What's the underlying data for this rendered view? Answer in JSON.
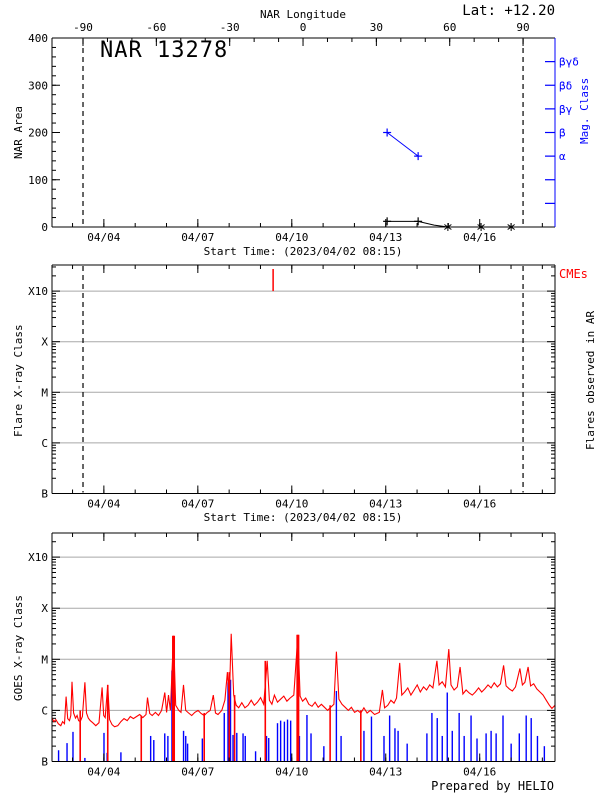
{
  "colors": {
    "accent_blue": "#0000ff",
    "accent_red": "#ff0000",
    "grid_gray": "#a8a8a8",
    "axis_black": "#000000"
  },
  "chart_data": [
    {
      "id": "nar_area_panel",
      "type": "line",
      "title": "NAR 13278",
      "lat_label": "Lat: +12.20",
      "ylabel": "NAR Area",
      "ylim": [
        0,
        400
      ],
      "yticks": [
        0,
        100,
        200,
        300,
        400
      ],
      "y_minor_step": 20,
      "xlabel": "Start Time: (2023/04/02 08:15)",
      "x_tick_labels": [
        "04/04",
        "04/07",
        "04/10",
        "04/13",
        "04/16"
      ],
      "x_tick_days": [
        1.656,
        4.656,
        7.656,
        10.656,
        13.656
      ],
      "x_span_days": 16.06,
      "x_minor_first_day": 0.656,
      "x_minor_step_days": 1,
      "top_axis": {
        "label": "NAR Longitude",
        "ticks": [
          -90,
          -60,
          -30,
          0,
          30,
          60,
          90
        ],
        "minor_step": 10,
        "deg_min": -90,
        "deg_max": 90,
        "deg_min_day": 0.99,
        "deg_max_day": 15.04
      },
      "right_axis": {
        "label": "Mag. Class",
        "ticks": [
          {
            "value": 350,
            "label": "βγδ"
          },
          {
            "value": 300,
            "label": "βδ"
          },
          {
            "value": 250,
            "label": "βγ"
          },
          {
            "value": 200,
            "label": "β"
          },
          {
            "value": 150,
            "label": "α"
          },
          {
            "value": 100,
            "label": ""
          },
          {
            "value": 50,
            "label": ""
          }
        ]
      },
      "disk_passage_vlines_days": [
        0.99,
        15.04
      ],
      "area_series": {
        "points": [
          {
            "day": 10.7,
            "area": 12,
            "marker": "plus"
          },
          {
            "day": 11.69,
            "area": 12,
            "marker": "plus"
          },
          {
            "day": 12.2,
            "area": 4,
            "marker": "none"
          },
          {
            "day": 12.64,
            "area": 0,
            "marker": "star"
          },
          {
            "day": 13.7,
            "area": 0,
            "marker": "star"
          },
          {
            "day": 14.66,
            "area": 0,
            "marker": "star"
          }
        ]
      },
      "mag_series": {
        "points": [
          {
            "day": 10.7,
            "mag_class": "β",
            "value": 200
          },
          {
            "day": 11.69,
            "mag_class": "α",
            "value": 150
          }
        ]
      }
    },
    {
      "id": "flares_panel",
      "type": "event-timeline",
      "ylabel": "Flare X-ray Class",
      "right_label": "Flares observed in AR",
      "cme_label": "CMEs",
      "class_ticks": [
        "B",
        "C",
        "M",
        "X",
        "X10"
      ],
      "xlabel": "Start Time: (2023/04/02 08:15)",
      "x_tick_labels": [
        "04/04",
        "04/07",
        "04/10",
        "04/13",
        "04/16"
      ],
      "x_tick_days": [
        1.656,
        4.656,
        7.656,
        10.656,
        13.656
      ],
      "x_span_days": 16.06,
      "x_minor_first_day": 0.656,
      "x_minor_step_days": 1,
      "disk_passage_vlines_days": [
        0.99,
        15.04
      ],
      "flare_events": [],
      "cme_event_days": [
        7.06
      ]
    },
    {
      "id": "goes_panel",
      "type": "line",
      "ylabel": "GOES X-ray Class",
      "class_ticks": [
        "B",
        "C",
        "M",
        "X",
        "X10"
      ],
      "x_tick_labels": [
        "04/04",
        "04/07",
        "04/10",
        "04/13",
        "04/16"
      ],
      "x_tick_days": [
        1.656,
        4.656,
        7.656,
        10.656,
        13.656
      ],
      "x_span_days": 16.06,
      "x_minor_first_day": 0.656,
      "x_minor_step_days": 1,
      "credit": "Prepared by HELIO",
      "flux_curve_log_units_above_B": [
        [
          0,
          0.85
        ],
        [
          0.06,
          0.78
        ],
        [
          0.12,
          0.82
        ],
        [
          0.2,
          0.74
        ],
        [
          0.28,
          0.7
        ],
        [
          0.34,
          0.78
        ],
        [
          0.4,
          0.74
        ],
        [
          0.45,
          1.27
        ],
        [
          0.5,
          0.84
        ],
        [
          0.56,
          0.8
        ],
        [
          0.6,
          0.9
        ],
        [
          0.64,
          1.56
        ],
        [
          0.69,
          0.95
        ],
        [
          0.75,
          0.85
        ],
        [
          0.8,
          0.9
        ],
        [
          0.85,
          0.8
        ],
        [
          0.9,
          0.78
        ],
        [
          0.97,
          0.88
        ],
        [
          1.05,
          1.55
        ],
        [
          1.1,
          0.95
        ],
        [
          1.16,
          0.85
        ],
        [
          1.22,
          0.8
        ],
        [
          1.3,
          0.76
        ],
        [
          1.4,
          0.7
        ],
        [
          1.5,
          0.76
        ],
        [
          1.6,
          1.45
        ],
        [
          1.65,
          0.9
        ],
        [
          1.7,
          0.86
        ],
        [
          1.78,
          1.5
        ],
        [
          1.84,
          0.82
        ],
        [
          1.92,
          0.72
        ],
        [
          2.0,
          0.68
        ],
        [
          2.1,
          0.7
        ],
        [
          2.2,
          0.78
        ],
        [
          2.3,
          0.84
        ],
        [
          2.4,
          0.8
        ],
        [
          2.5,
          0.88
        ],
        [
          2.6,
          0.84
        ],
        [
          2.7,
          0.88
        ],
        [
          2.8,
          0.92
        ],
        [
          2.9,
          0.86
        ],
        [
          3.0,
          0.92
        ],
        [
          3.05,
          1.25
        ],
        [
          3.12,
          0.94
        ],
        [
          3.2,
          0.9
        ],
        [
          3.3,
          0.96
        ],
        [
          3.4,
          0.9
        ],
        [
          3.5,
          1.0
        ],
        [
          3.6,
          1.35
        ],
        [
          3.66,
          0.96
        ],
        [
          3.72,
          1.3
        ],
        [
          3.78,
          1.0
        ],
        [
          3.88,
          2.46
        ],
        [
          3.95,
          1.1
        ],
        [
          4.05,
          1.0
        ],
        [
          4.12,
          0.96
        ],
        [
          4.2,
          1.5
        ],
        [
          4.27,
          1.0
        ],
        [
          4.36,
          0.95
        ],
        [
          4.46,
          0.9
        ],
        [
          4.56,
          0.96
        ],
        [
          4.66,
          1.0
        ],
        [
          4.76,
          0.94
        ],
        [
          4.86,
          0.9
        ],
        [
          4.96,
          0.96
        ],
        [
          5.05,
          1.0
        ],
        [
          5.15,
          1.3
        ],
        [
          5.22,
          0.95
        ],
        [
          5.3,
          0.92
        ],
        [
          5.42,
          1.0
        ],
        [
          5.52,
          1.2
        ],
        [
          5.6,
          1.75
        ],
        [
          5.66,
          1.2
        ],
        [
          5.72,
          2.5
        ],
        [
          5.8,
          1.3
        ],
        [
          5.88,
          1.1
        ],
        [
          5.96,
          1.05
        ],
        [
          6.06,
          1.15
        ],
        [
          6.16,
          1.05
        ],
        [
          6.26,
          1.1
        ],
        [
          6.36,
          1.2
        ],
        [
          6.46,
          1.1
        ],
        [
          6.56,
          1.16
        ],
        [
          6.66,
          1.25
        ],
        [
          6.76,
          1.12
        ],
        [
          6.87,
          1.97
        ],
        [
          6.94,
          1.2
        ],
        [
          7.02,
          1.12
        ],
        [
          7.1,
          1.3
        ],
        [
          7.2,
          1.16
        ],
        [
          7.3,
          1.22
        ],
        [
          7.4,
          1.28
        ],
        [
          7.5,
          1.18
        ],
        [
          7.6,
          1.24
        ],
        [
          7.72,
          1.3
        ],
        [
          7.85,
          2.48
        ],
        [
          7.92,
          1.28
        ],
        [
          8.0,
          1.18
        ],
        [
          8.1,
          1.24
        ],
        [
          8.2,
          1.12
        ],
        [
          8.3,
          1.08
        ],
        [
          8.4,
          1.16
        ],
        [
          8.5,
          1.06
        ],
        [
          8.6,
          1.12
        ],
        [
          8.7,
          1.06
        ],
        [
          8.8,
          1.0
        ],
        [
          8.9,
          1.06
        ],
        [
          9.0,
          1.12
        ],
        [
          9.08,
          2.15
        ],
        [
          9.16,
          1.22
        ],
        [
          9.26,
          1.12
        ],
        [
          9.36,
          1.06
        ],
        [
          9.46,
          1.0
        ],
        [
          9.56,
          1.06
        ],
        [
          9.66,
          0.96
        ],
        [
          9.76,
          1.0
        ],
        [
          9.86,
          0.95
        ],
        [
          9.96,
          1.05
        ],
        [
          10.06,
          0.95
        ],
        [
          10.16,
          1.0
        ],
        [
          10.3,
          0.92
        ],
        [
          10.45,
          0.96
        ],
        [
          10.55,
          1.4
        ],
        [
          10.62,
          1.05
        ],
        [
          10.72,
          1.1
        ],
        [
          10.82,
          1.2
        ],
        [
          10.92,
          1.14
        ],
        [
          11.0,
          1.24
        ],
        [
          11.1,
          1.93
        ],
        [
          11.17,
          1.3
        ],
        [
          11.26,
          1.36
        ],
        [
          11.36,
          1.44
        ],
        [
          11.46,
          1.3
        ],
        [
          11.56,
          1.4
        ],
        [
          11.66,
          1.5
        ],
        [
          11.76,
          1.36
        ],
        [
          11.86,
          1.46
        ],
        [
          11.96,
          1.4
        ],
        [
          12.06,
          1.5
        ],
        [
          12.16,
          1.44
        ],
        [
          12.29,
          1.97
        ],
        [
          12.36,
          1.5
        ],
        [
          12.46,
          1.56
        ],
        [
          12.56,
          1.46
        ],
        [
          12.67,
          2.2
        ],
        [
          12.74,
          1.5
        ],
        [
          12.84,
          1.4
        ],
        [
          12.94,
          1.46
        ],
        [
          13.03,
          1.85
        ],
        [
          13.12,
          1.32
        ],
        [
          13.22,
          1.4
        ],
        [
          13.32,
          1.34
        ],
        [
          13.42,
          1.3
        ],
        [
          13.52,
          1.36
        ],
        [
          13.62,
          1.44
        ],
        [
          13.72,
          1.36
        ],
        [
          13.82,
          1.42
        ],
        [
          13.92,
          1.5
        ],
        [
          14.02,
          1.44
        ],
        [
          14.12,
          1.54
        ],
        [
          14.22,
          1.46
        ],
        [
          14.32,
          1.52
        ],
        [
          14.42,
          1.88
        ],
        [
          14.5,
          1.48
        ],
        [
          14.6,
          1.42
        ],
        [
          14.7,
          1.38
        ],
        [
          14.8,
          1.46
        ],
        [
          14.94,
          1.82
        ],
        [
          15.02,
          1.5
        ],
        [
          15.1,
          1.55
        ],
        [
          15.2,
          1.85
        ],
        [
          15.28,
          1.48
        ],
        [
          15.38,
          1.52
        ],
        [
          15.48,
          1.42
        ],
        [
          15.58,
          1.36
        ],
        [
          15.68,
          1.3
        ],
        [
          15.78,
          1.2
        ],
        [
          15.88,
          1.1
        ],
        [
          15.96,
          1.04
        ],
        [
          16.06,
          1.1
        ]
      ],
      "red_vertical_drops": [
        [
          0.9,
          1.0
        ],
        [
          1.78,
          1.5
        ],
        [
          2.85,
          0.9
        ],
        [
          3.88,
          2.46
        ],
        [
          4.86,
          0.95
        ],
        [
          5.66,
          1.75
        ],
        [
          5.83,
          1.3
        ],
        [
          6.81,
          1.97
        ],
        [
          7.85,
          2.48
        ],
        [
          8.88,
          1.1
        ],
        [
          9.86,
          1.0
        ]
      ],
      "thick_drop_days": [
        3.88,
        7.85
      ],
      "blue_bars": [
        [
          0.21,
          0.22
        ],
        [
          0.48,
          0.36
        ],
        [
          0.67,
          0.58
        ],
        [
          1.05,
          0.07
        ],
        [
          1.66,
          0.56
        ],
        [
          1.76,
          0.17
        ],
        [
          2.2,
          0.18
        ],
        [
          3.15,
          0.5
        ],
        [
          3.25,
          0.42
        ],
        [
          3.6,
          0.55
        ],
        [
          3.7,
          0.5
        ],
        [
          3.83,
          1.78
        ],
        [
          3.9,
          1.62
        ],
        [
          4.2,
          0.6
        ],
        [
          4.27,
          0.5
        ],
        [
          4.33,
          0.35
        ],
        [
          4.8,
          0.45
        ],
        [
          5.5,
          0.95
        ],
        [
          5.62,
          1.55
        ],
        [
          5.7,
          1.6
        ],
        [
          5.78,
          0.52
        ],
        [
          5.9,
          0.56
        ],
        [
          6.1,
          0.55
        ],
        [
          6.17,
          0.5
        ],
        [
          6.5,
          0.2
        ],
        [
          6.85,
          0.5
        ],
        [
          6.92,
          0.46
        ],
        [
          7.2,
          0.75
        ],
        [
          7.3,
          0.8
        ],
        [
          7.42,
          0.78
        ],
        [
          7.52,
          0.82
        ],
        [
          7.62,
          0.8
        ],
        [
          7.9,
          0.5
        ],
        [
          8.14,
          0.91
        ],
        [
          8.27,
          0.55
        ],
        [
          8.68,
          0.3
        ],
        [
          9.08,
          1.38
        ],
        [
          9.23,
          0.5
        ],
        [
          9.96,
          0.6
        ],
        [
          10.2,
          0.88
        ],
        [
          10.6,
          0.5
        ],
        [
          10.78,
          0.9
        ],
        [
          10.95,
          0.65
        ],
        [
          11.05,
          0.6
        ],
        [
          11.34,
          0.35
        ],
        [
          11.97,
          0.55
        ],
        [
          12.13,
          0.95
        ],
        [
          12.3,
          0.85
        ],
        [
          12.46,
          0.5
        ],
        [
          12.62,
          1.35
        ],
        [
          12.78,
          0.6
        ],
        [
          13.0,
          0.95
        ],
        [
          13.16,
          0.5
        ],
        [
          13.38,
          0.9
        ],
        [
          13.57,
          0.45
        ],
        [
          13.86,
          0.55
        ],
        [
          14.02,
          0.6
        ],
        [
          14.18,
          0.55
        ],
        [
          14.4,
          0.9
        ],
        [
          14.66,
          0.35
        ],
        [
          14.92,
          0.55
        ],
        [
          15.14,
          0.9
        ],
        [
          15.3,
          0.85
        ],
        [
          15.5,
          0.5
        ],
        [
          15.72,
          0.3
        ]
      ]
    }
  ]
}
